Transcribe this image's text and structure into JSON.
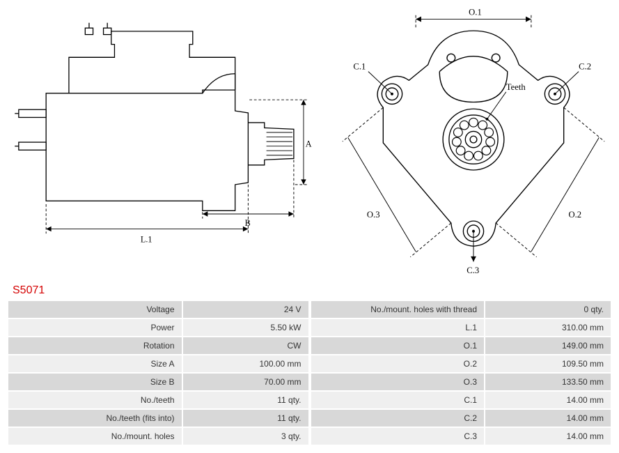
{
  "partId": "S5071",
  "diagram_labels": {
    "side": {
      "L1": "L.1",
      "A": "A",
      "B": "B"
    },
    "front": {
      "O1": "O.1",
      "O2": "O.2",
      "O3": "O.3",
      "C1": "C.1",
      "C2": "C.2",
      "C3": "C.3",
      "Teeth": "Teeth"
    }
  },
  "style": {
    "stroke": "#000000",
    "strokeWidth": 1.2,
    "dash": "4 3",
    "fontSize": 13,
    "labelColor": "#000000",
    "tableOdd": "#d8d8d8",
    "tableEven": "#efefef",
    "partIdColor": "#d40000",
    "tableFontSize": 12
  },
  "specs_left": [
    {
      "label": "Voltage",
      "value": "24 V"
    },
    {
      "label": "Power",
      "value": "5.50 kW"
    },
    {
      "label": "Rotation",
      "value": "CW"
    },
    {
      "label": "Size A",
      "value": "100.00 mm"
    },
    {
      "label": "Size B",
      "value": "70.00 mm"
    },
    {
      "label": "No./teeth",
      "value": "11 qty."
    },
    {
      "label": "No./teeth (fits into)",
      "value": "11 qty."
    },
    {
      "label": "No./mount. holes",
      "value": "3 qty."
    }
  ],
  "specs_right": [
    {
      "label": "No./mount. holes with thread",
      "value": "0 qty."
    },
    {
      "label": "L.1",
      "value": "310.00 mm"
    },
    {
      "label": "O.1",
      "value": "149.00 mm"
    },
    {
      "label": "O.2",
      "value": "109.50 mm"
    },
    {
      "label": "O.3",
      "value": "133.50 mm"
    },
    {
      "label": "C.1",
      "value": "14.00 mm"
    },
    {
      "label": "C.2",
      "value": "14.00 mm"
    },
    {
      "label": "C.3",
      "value": "14.00 mm"
    }
  ]
}
